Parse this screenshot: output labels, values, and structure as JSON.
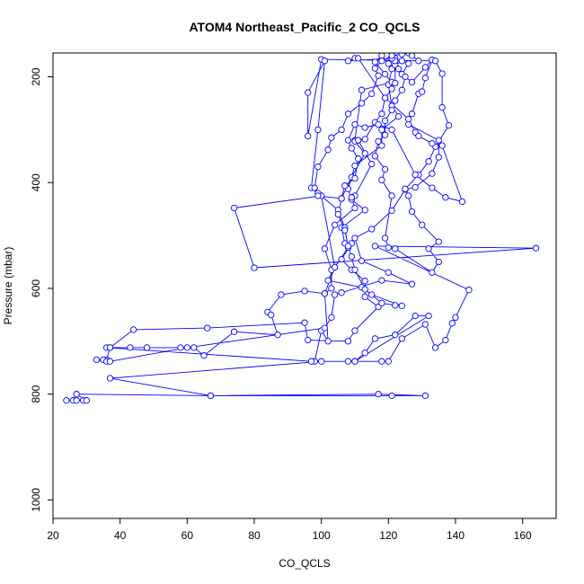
{
  "chart_data": {
    "type": "line",
    "title": "ATOM4 Northeast_Pacific_2 CO_QCLS",
    "xlabel": "CO_QCLS",
    "ylabel": "Pressure (mbar)",
    "xlim": [
      20,
      170
    ],
    "ylim": [
      1035,
      155
    ],
    "y_reversed": true,
    "x_ticks": [
      20,
      40,
      60,
      80,
      100,
      120,
      140,
      160
    ],
    "y_ticks": [
      200,
      400,
      600,
      800,
      1000
    ],
    "grid": false,
    "series_color": "#0000ff",
    "series": [
      {
        "markers": "open-circle",
        "points": [
          [
            24,
            812
          ],
          [
            26,
            812
          ],
          [
            27,
            812
          ],
          [
            29,
            812
          ],
          [
            30,
            812
          ],
          [
            27,
            800
          ],
          [
            67,
            803
          ],
          [
            117,
            800
          ],
          [
            131,
            803
          ],
          [
            121,
            803
          ],
          [
            67,
            803
          ],
          [
            37,
            770
          ],
          [
            100,
            738
          ],
          [
            108,
            738
          ],
          [
            118,
            738
          ],
          [
            120,
            738
          ],
          [
            124,
            695
          ],
          [
            131,
            668
          ],
          [
            134,
            712
          ],
          [
            137,
            698
          ],
          [
            139,
            666
          ],
          [
            140,
            655
          ],
          [
            144,
            603
          ],
          [
            116,
            520
          ],
          [
            164,
            524
          ],
          [
            80,
            561
          ],
          [
            74,
            448
          ],
          [
            100,
            425
          ],
          [
            104,
            560
          ],
          [
            101,
            610
          ],
          [
            102,
            700
          ],
          [
            100,
            680
          ],
          [
            98,
            738
          ],
          [
            110,
            738
          ],
          [
            113,
            722
          ],
          [
            116,
            695
          ],
          [
            122,
            688
          ],
          [
            128,
            652
          ],
          [
            132,
            652
          ],
          [
            110,
            738
          ],
          [
            97,
            738
          ],
          [
            36,
            712
          ],
          [
            37,
            712
          ],
          [
            44,
            678
          ],
          [
            66,
            675
          ],
          [
            95,
            665
          ],
          [
            96,
            698
          ],
          [
            108,
            700
          ],
          [
            110,
            680
          ],
          [
            117,
            635
          ],
          [
            113,
            616
          ],
          [
            113,
            586
          ],
          [
            109,
            565
          ],
          [
            106,
            545
          ],
          [
            109,
            515
          ],
          [
            107,
            515
          ],
          [
            106,
            485
          ],
          [
            113,
            452
          ],
          [
            109,
            432
          ],
          [
            108,
            412
          ],
          [
            110,
            368
          ],
          [
            118,
            330
          ],
          [
            118,
            300
          ],
          [
            123,
            275
          ],
          [
            121,
            255
          ],
          [
            120,
            215
          ],
          [
            121,
            185
          ],
          [
            122,
            165
          ],
          [
            120,
            175
          ],
          [
            118,
            160
          ],
          [
            116,
            172
          ],
          [
            119,
            195
          ],
          [
            121,
            210
          ],
          [
            112,
            225
          ],
          [
            110,
            320
          ],
          [
            111,
            320
          ],
          [
            115,
            365
          ],
          [
            110,
            425
          ],
          [
            109,
            428
          ],
          [
            110,
            448
          ],
          [
            104,
            480
          ],
          [
            101,
            525
          ],
          [
            103,
            565
          ],
          [
            103,
            600
          ],
          [
            101,
            610
          ],
          [
            95,
            605
          ],
          [
            88,
            612
          ],
          [
            84,
            645
          ],
          [
            85,
            650
          ],
          [
            87,
            688
          ],
          [
            74,
            682
          ],
          [
            65,
            727
          ],
          [
            62,
            712
          ],
          [
            58,
            712
          ],
          [
            48,
            712
          ],
          [
            43,
            712
          ],
          [
            37,
            712
          ],
          [
            36,
            735
          ],
          [
            35,
            735
          ],
          [
            33,
            735
          ],
          [
            36,
            738
          ],
          [
            37,
            738
          ],
          [
            60,
            712
          ],
          [
            101,
            675
          ],
          [
            103,
            655
          ],
          [
            104,
            612
          ],
          [
            106,
            608
          ],
          [
            118,
            585
          ],
          [
            127,
            592
          ],
          [
            120,
            570
          ],
          [
            112,
            548
          ],
          [
            110,
            505
          ],
          [
            115,
            488
          ],
          [
            121,
            453
          ],
          [
            125,
            413
          ],
          [
            128,
            409
          ],
          [
            133,
            383
          ],
          [
            135,
            352
          ],
          [
            135,
            320
          ],
          [
            126,
            290
          ],
          [
            127,
            270
          ],
          [
            129,
            232
          ],
          [
            130,
            228
          ],
          [
            131,
            202
          ],
          [
            133,
            168
          ],
          [
            131,
            182
          ],
          [
            127,
            210
          ],
          [
            124,
            195
          ],
          [
            126,
            175
          ],
          [
            124,
            170
          ],
          [
            122,
            178
          ],
          [
            123,
            185
          ],
          [
            125,
            200
          ],
          [
            124,
            225
          ],
          [
            122,
            245
          ],
          [
            121,
            263
          ],
          [
            119,
            283
          ],
          [
            119,
            310
          ],
          [
            117,
            322
          ],
          [
            116,
            350
          ],
          [
            119,
            375
          ],
          [
            118,
            395
          ],
          [
            121,
            425
          ],
          [
            119,
            505
          ],
          [
            120,
            523
          ],
          [
            122,
            525
          ],
          [
            133,
            570
          ],
          [
            135,
            550
          ],
          [
            132,
            525
          ],
          [
            135,
            512
          ],
          [
            130,
            480
          ],
          [
            127,
            455
          ],
          [
            126,
            425
          ],
          [
            125,
            412
          ],
          [
            129,
            385
          ],
          [
            132,
            360
          ],
          [
            134,
            332
          ],
          [
            138,
            292
          ],
          [
            136,
            258
          ],
          [
            136,
            194
          ],
          [
            134,
            170
          ],
          [
            100,
            167
          ],
          [
            96,
            312
          ],
          [
            96,
            230
          ],
          [
            101,
            170
          ],
          [
            99,
            300
          ],
          [
            97,
            410
          ],
          [
            99,
            420
          ],
          [
            105,
            452
          ],
          [
            107,
            485
          ],
          [
            108,
            523
          ],
          [
            104,
            560
          ],
          [
            102,
            585
          ],
          [
            112,
            598
          ],
          [
            115,
            612
          ],
          [
            124,
            633
          ],
          [
            122,
            632
          ],
          [
            118,
            628
          ],
          [
            113,
            602
          ],
          [
            110,
            565
          ],
          [
            109,
            540
          ],
          [
            108,
            520
          ],
          [
            107,
            490
          ],
          [
            105,
            460
          ],
          [
            106,
            430
          ],
          [
            109,
            390
          ],
          [
            113,
            345
          ],
          [
            110,
            322
          ],
          [
            111,
            320
          ],
          [
            113,
            318
          ],
          [
            116,
            286
          ],
          [
            118,
            270
          ],
          [
            119,
            240
          ],
          [
            121,
            223
          ],
          [
            122,
            212
          ],
          [
            122,
            170
          ],
          [
            121,
            165
          ],
          [
            108,
            170
          ],
          [
            110,
            165
          ],
          [
            111,
            165
          ],
          [
            119,
            240
          ],
          [
            126,
            280
          ],
          [
            128,
            305
          ],
          [
            129,
            312
          ],
          [
            133,
            326
          ],
          [
            136,
            330
          ],
          [
            142,
            436
          ],
          [
            137,
            428
          ],
          [
            133,
            410
          ],
          [
            128,
            385
          ],
          [
            121,
            300
          ],
          [
            117,
            290
          ],
          [
            113,
            296
          ],
          [
            110,
            290
          ],
          [
            108,
            320
          ],
          [
            109,
            335
          ],
          [
            111,
            355
          ],
          [
            110,
            392
          ],
          [
            107,
            406
          ],
          [
            106,
            430
          ],
          [
            99,
            425
          ],
          [
            98,
            410
          ],
          [
            99,
            370
          ],
          [
            102,
            338
          ],
          [
            103,
            315
          ],
          [
            106,
            300
          ],
          [
            108,
            270
          ],
          [
            112,
            250
          ],
          [
            115,
            232
          ],
          [
            117,
            198
          ],
          [
            116,
            184
          ],
          [
            118,
            170
          ],
          [
            121,
            160
          ],
          [
            124,
            157
          ],
          [
            126,
            155
          ],
          [
            127,
            160
          ],
          [
            129,
            170
          ]
        ]
      }
    ]
  }
}
